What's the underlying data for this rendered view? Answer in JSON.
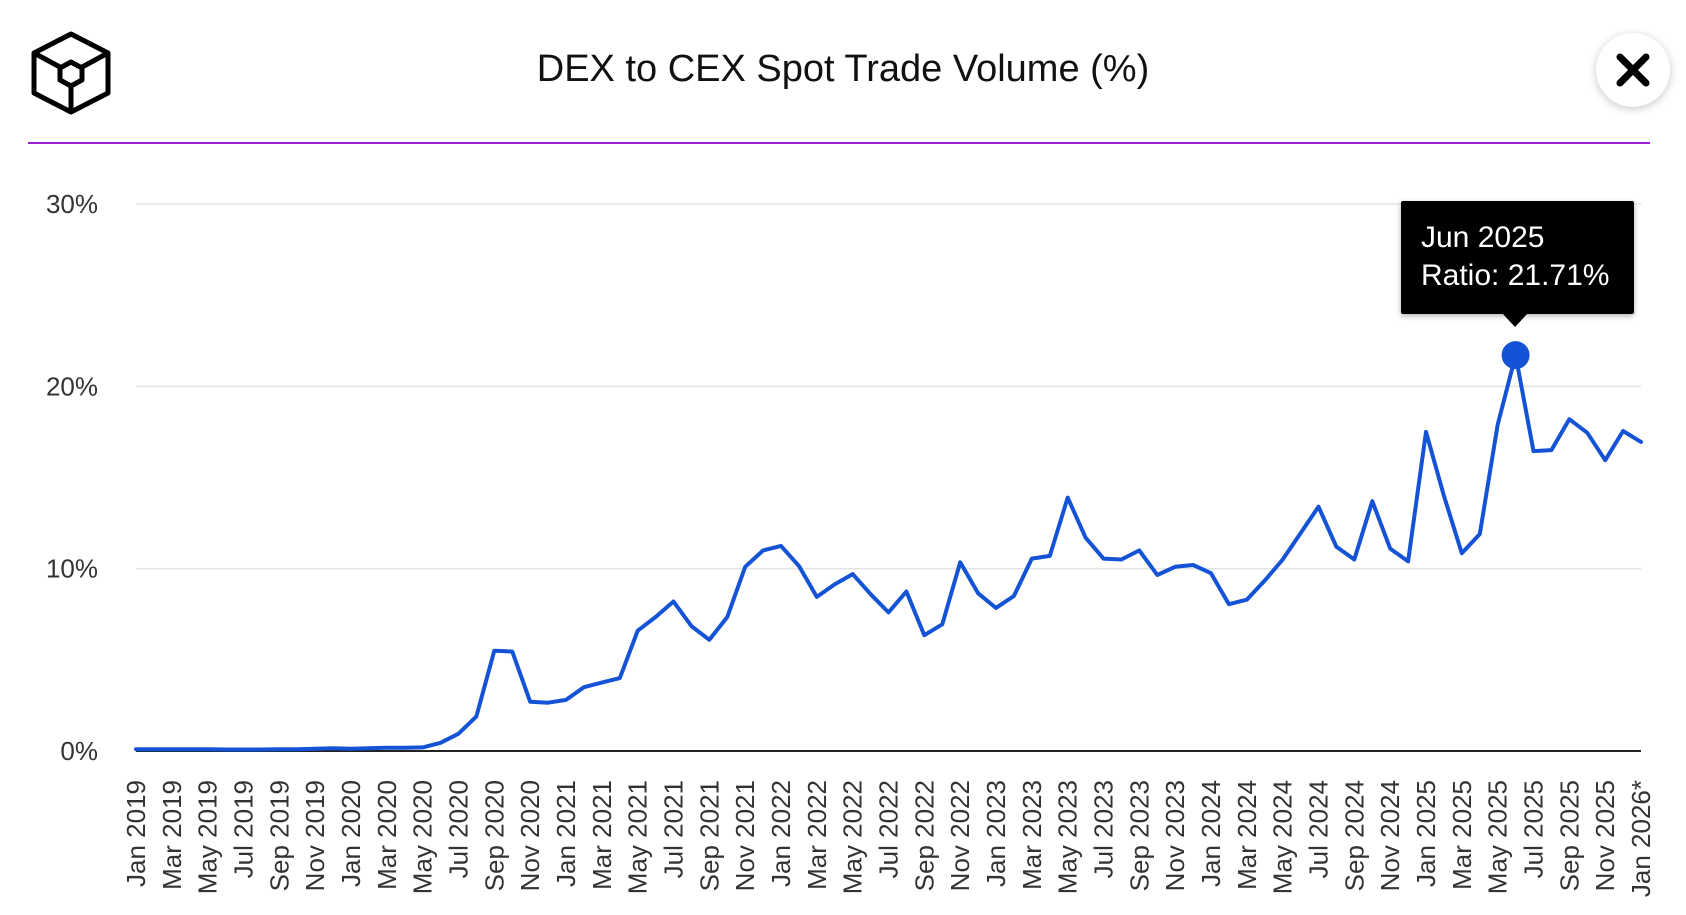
{
  "header": {
    "title": "DEX to CEX Spot Trade Volume (%)",
    "logo_icon": "cube-logo-icon",
    "close_icon": "close-icon",
    "accent_color": "#9b1fd6"
  },
  "tooltip": {
    "date": "Jun 2025",
    "ratio_text": "Ratio: 21.71%"
  },
  "chart_data": {
    "type": "line",
    "title": "DEX to CEX Spot Trade Volume (%)",
    "xlabel": "",
    "ylabel": "",
    "ylim": [
      0,
      30
    ],
    "yticks": [
      "0%",
      "10%",
      "20%",
      "30%"
    ],
    "grid": true,
    "line_color": "#1452d6",
    "categories": [
      "Jan 2019",
      "Feb 2019",
      "Mar 2019",
      "Apr 2019",
      "May 2019",
      "Jun 2019",
      "Jul 2019",
      "Aug 2019",
      "Sep 2019",
      "Oct 2019",
      "Nov 2019",
      "Dec 2019",
      "Jan 2020",
      "Feb 2020",
      "Mar 2020",
      "Apr 2020",
      "May 2020",
      "Jun 2020",
      "Jul 2020",
      "Aug 2020",
      "Sep 2020",
      "Oct 2020",
      "Nov 2020",
      "Dec 2020",
      "Jan 2021",
      "Feb 2021",
      "Mar 2021",
      "Apr 2021",
      "May 2021",
      "Jun 2021",
      "Jul 2021",
      "Aug 2021",
      "Sep 2021",
      "Oct 2021",
      "Nov 2021",
      "Dec 2021",
      "Jan 2022",
      "Feb 2022",
      "Mar 2022",
      "Apr 2022",
      "May 2022",
      "Jun 2022",
      "Jul 2022",
      "Aug 2022",
      "Sep 2022",
      "Oct 2022",
      "Nov 2022",
      "Dec 2022",
      "Jan 2023",
      "Feb 2023",
      "Mar 2023",
      "Apr 2023",
      "May 2023",
      "Jun 2023",
      "Jul 2023",
      "Aug 2023",
      "Sep 2023",
      "Oct 2023",
      "Nov 2023",
      "Dec 2023",
      "Jan 2024",
      "Feb 2024",
      "Mar 2024",
      "Apr 2024",
      "May 2024",
      "Jun 2024",
      "Jul 2024",
      "Aug 2024",
      "Sep 2024",
      "Oct 2024",
      "Nov 2024",
      "Dec 2024",
      "Jan 2025",
      "Feb 2025",
      "Mar 2025",
      "Apr 2025",
      "May 2025",
      "Jun 2025",
      "Jul 2025",
      "Aug 2025",
      "Sep 2025",
      "Oct 2025",
      "Nov 2025",
      "Dec 2025",
      "Jan 2026*"
    ],
    "x_tick_labels": [
      "Jan 2019",
      "Mar 2019",
      "May 2019",
      "Jul 2019",
      "Sep 2019",
      "Nov 2019",
      "Jan 2020",
      "Mar 2020",
      "May 2020",
      "Jul 2020",
      "Sep 2020",
      "Nov 2020",
      "Jan 2021",
      "Mar 2021",
      "May 2021",
      "Jul 2021",
      "Sep 2021",
      "Nov 2021",
      "Jan 2022",
      "Mar 2022",
      "May 2022",
      "Jul 2022",
      "Sep 2022",
      "Nov 2022",
      "Jan 2023",
      "Mar 2023",
      "May 2023",
      "Jul 2023",
      "Sep 2023",
      "Nov 2023",
      "Jan 2024",
      "Mar 2024",
      "May 2024",
      "Jul 2024",
      "Sep 2024",
      "Nov 2024",
      "Jan 2025",
      "Mar 2025",
      "May 2025",
      "Jul 2025",
      "Sep 2025",
      "Nov 2025",
      "Jan 2026*"
    ],
    "series": [
      {
        "values": [
          0.1,
          0.1,
          0.1,
          0.1,
          0.1,
          0.08,
          0.08,
          0.08,
          0.1,
          0.1,
          0.12,
          0.15,
          0.12,
          0.15,
          0.18,
          0.18,
          0.2,
          0.45,
          0.95,
          1.9,
          5.5,
          5.45,
          2.7,
          2.65,
          2.8,
          3.5,
          3.75,
          4.0,
          6.6,
          7.35,
          8.2,
          6.85,
          6.1,
          7.35,
          10.1,
          11.0,
          11.25,
          10.15,
          8.45,
          9.15,
          9.7,
          8.6,
          7.6,
          8.75,
          6.35,
          6.95,
          10.35,
          8.65,
          7.85,
          8.5,
          10.55,
          10.7,
          13.9,
          11.7,
          10.55,
          10.5,
          11.0,
          9.65,
          10.1,
          10.2,
          9.75,
          8.05,
          8.3,
          9.35,
          10.5,
          11.95,
          13.4,
          11.2,
          10.5,
          13.7,
          11.1,
          10.4,
          17.5,
          14.0,
          10.85,
          11.9,
          17.9,
          21.71,
          16.45,
          16.5,
          18.2,
          17.45,
          15.95,
          17.55,
          16.95
        ]
      }
    ],
    "highlight": {
      "category": "Jun 2025",
      "value": 21.71
    }
  }
}
